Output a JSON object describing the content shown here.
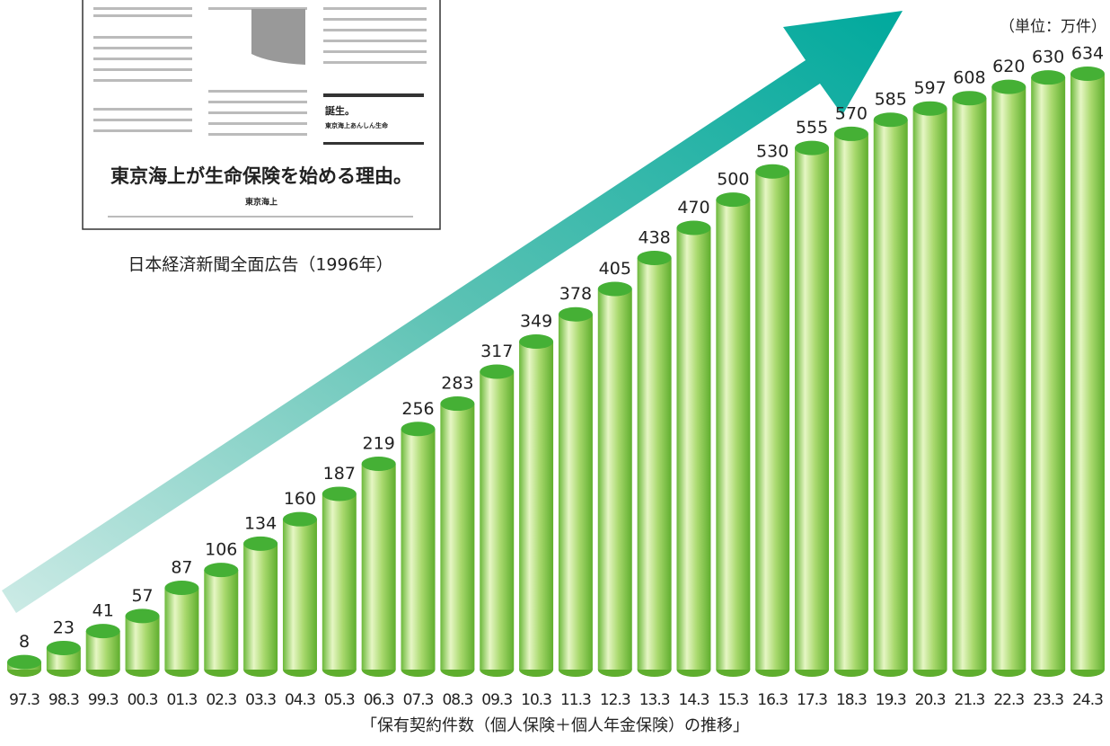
{
  "chart_data": {
    "type": "bar",
    "unit_label": "（単位：万件）",
    "caption": "「保有契約件数（個人保険＋個人年金保険）の推移」",
    "categories": [
      "97.3",
      "98.3",
      "99.3",
      "00.3",
      "01.3",
      "02.3",
      "03.3",
      "04.3",
      "05.3",
      "06.3",
      "07.3",
      "08.3",
      "09.3",
      "10.3",
      "11.3",
      "12.3",
      "13.3",
      "14.3",
      "15.3",
      "16.3",
      "17.3",
      "18.3",
      "19.3",
      "20.3",
      "21.3",
      "22.3",
      "23.3",
      "24.3"
    ],
    "values": [
      8,
      23,
      41,
      57,
      87,
      106,
      134,
      160,
      187,
      219,
      256,
      283,
      317,
      349,
      378,
      405,
      438,
      470,
      500,
      530,
      555,
      570,
      585,
      597,
      608,
      620,
      630,
      634
    ],
    "color": "#45b035"
  },
  "ad": {
    "caption": "日本経済新聞全面広告（1996年）",
    "headline": "東京海上が生命保険を始める理由。",
    "sponsor": "東京海上",
    "box_title": "誕生。",
    "box_sub": "東京海上あんしん生命"
  }
}
